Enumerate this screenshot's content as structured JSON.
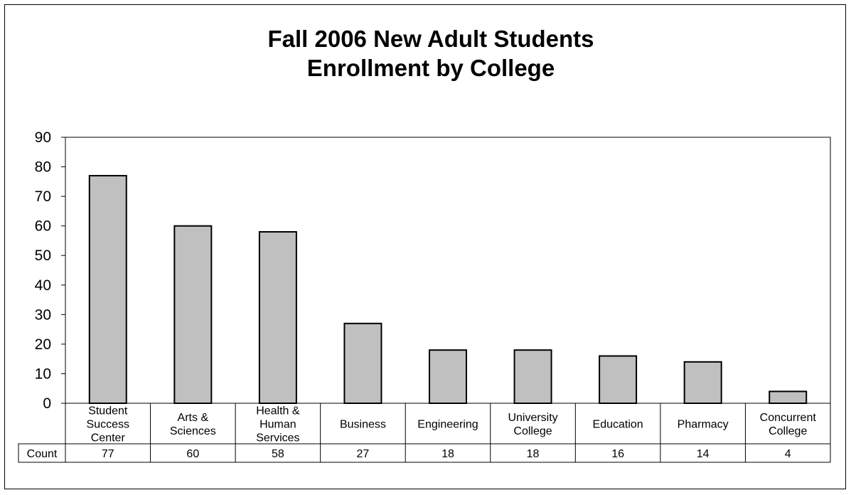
{
  "chart_data": {
    "type": "bar",
    "title": [
      "Fall 2006 New Adult Students",
      "Enrollment by College"
    ],
    "categories": [
      [
        "Student",
        "Success",
        "Center"
      ],
      [
        "Arts &",
        "Sciences"
      ],
      [
        "Health &",
        "Human",
        "Services"
      ],
      [
        "Business"
      ],
      [
        "Engineering"
      ],
      [
        "University",
        "College"
      ],
      [
        "Education"
      ],
      [
        "Pharmacy"
      ],
      [
        "Concurrent",
        "College"
      ]
    ],
    "series": [
      {
        "name": "Count",
        "values": [
          77,
          60,
          58,
          27,
          18,
          18,
          16,
          14,
          4
        ]
      }
    ],
    "ylim": [
      0,
      90
    ],
    "yticks": [
      0,
      10,
      20,
      30,
      40,
      50,
      60,
      70,
      80,
      90
    ],
    "grid": false,
    "legend": "data-table",
    "colors": {
      "bar": "#c0c0c0",
      "stroke": "#000000"
    }
  }
}
